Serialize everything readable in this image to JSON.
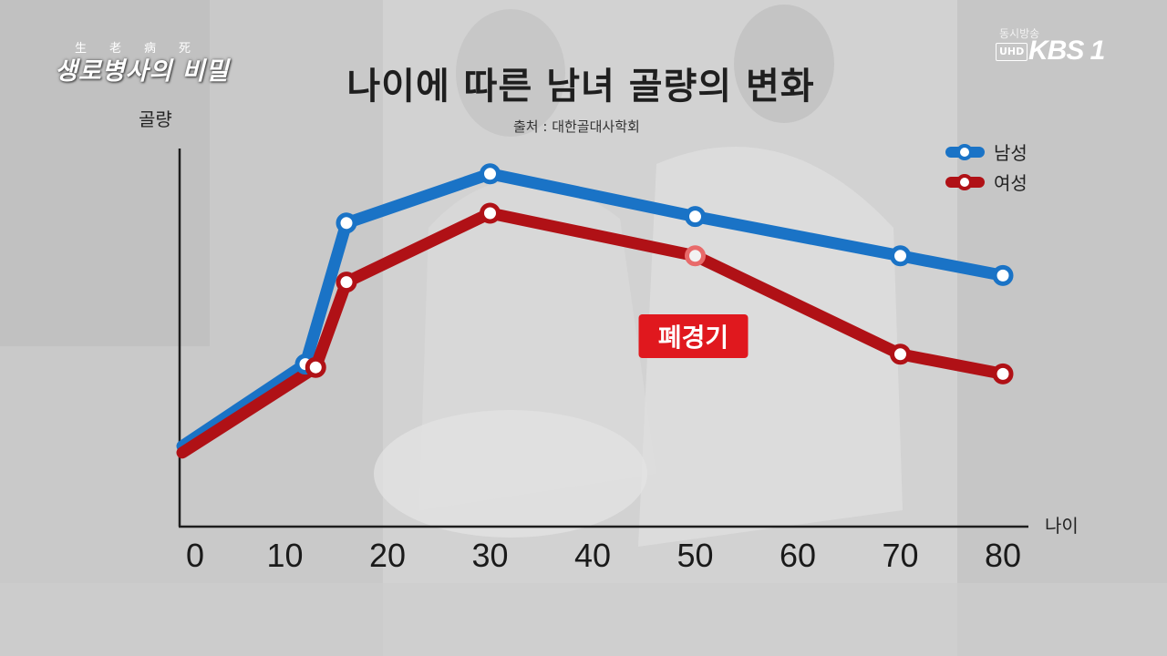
{
  "program_logo": {
    "small_chars": [
      "生",
      "老",
      "病",
      "死"
    ],
    "title": "생로병사의 비밀"
  },
  "broadcaster": {
    "simulcast": "동시방송",
    "uhd": "UHD",
    "channel": "KBS 1"
  },
  "chart_data": {
    "type": "line",
    "title": "나이에 따른 남녀 골량의 변화",
    "subtitle": "출처 : 대한골대사학회",
    "xlabel": "나이",
    "ylabel": "골량",
    "x_ticks": [
      0,
      10,
      20,
      30,
      40,
      50,
      60,
      70,
      80
    ],
    "xlim": [
      0,
      80
    ],
    "ylim": [
      0,
      100
    ],
    "legend_position": "top-right",
    "grid": false,
    "series": [
      {
        "name": "남성",
        "color": "#1a73c6",
        "x": [
          0,
          12,
          16,
          30,
          50,
          70,
          80
        ],
        "y": [
          14,
          39,
          82,
          97,
          84,
          72,
          66
        ]
      },
      {
        "name": "여성",
        "color": "#b01116",
        "x": [
          0,
          13,
          16,
          30,
          50,
          70,
          80
        ],
        "y": [
          12,
          38,
          64,
          85,
          72,
          42,
          36
        ]
      }
    ],
    "annotation": {
      "text": "폐경기",
      "x": 50,
      "color": "#e0181e"
    }
  }
}
